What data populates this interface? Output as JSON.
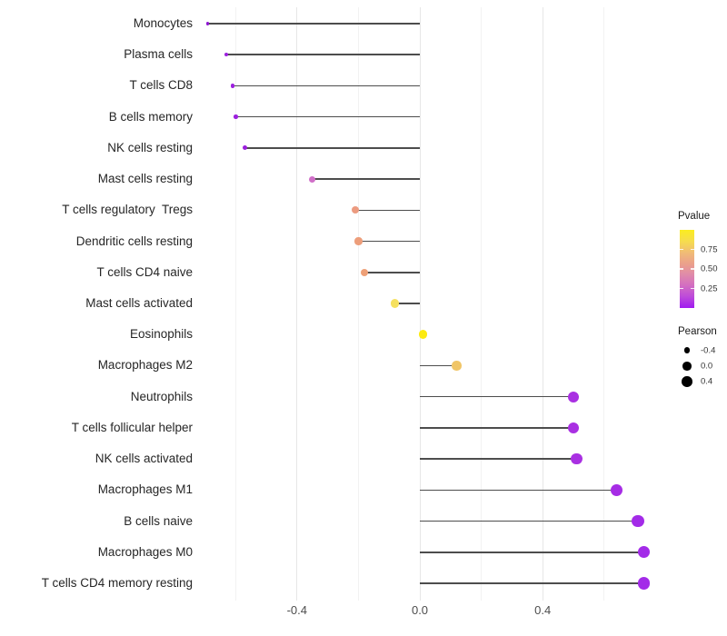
{
  "chart_data": {
    "type": "lollipop",
    "title": "",
    "xlabel": "",
    "ylabel": "",
    "xlim": [
      -0.72,
      0.83
    ],
    "grid": true,
    "x_ticks": [
      {
        "label": "-0.4",
        "value": -0.4
      },
      {
        "label": "0.0",
        "value": 0.0
      },
      {
        "label": "0.4",
        "value": 0.4
      }
    ],
    "x_minor_gridlines": [
      -0.6,
      -0.2,
      0.2,
      0.6
    ],
    "points": [
      {
        "label": "Monocytes",
        "pearson": -0.69,
        "color": "#8E17D1"
      },
      {
        "label": "Plasma cells",
        "pearson": -0.63,
        "color": "#9C20DE"
      },
      {
        "label": "T cells CD8",
        "pearson": -0.61,
        "color": "#9C20DE"
      },
      {
        "label": "B cells memory",
        "pearson": -0.6,
        "color": "#9C20DE"
      },
      {
        "label": "NK cells resting",
        "pearson": -0.57,
        "color": "#9B1FDD"
      },
      {
        "label": "Mast cells resting",
        "pearson": -0.35,
        "color": "#D06FC8"
      },
      {
        "label": "T cells regulatory  Tregs",
        "pearson": -0.21,
        "color": "#EC9B80"
      },
      {
        "label": "Dendritic cells resting",
        "pearson": -0.2,
        "color": "#ED9E7B"
      },
      {
        "label": "T cells CD4 naive",
        "pearson": -0.18,
        "color": "#EEA077"
      },
      {
        "label": "Mast cells activated",
        "pearson": -0.08,
        "color": "#F5E05E"
      },
      {
        "label": "Eosinophils",
        "pearson": 0.01,
        "color": "#FCEA11"
      },
      {
        "label": "Macrophages M2",
        "pearson": 0.12,
        "color": "#F0C567"
      },
      {
        "label": "Neutrophils",
        "pearson": 0.5,
        "color": "#A930E2"
      },
      {
        "label": "T cells follicular helper",
        "pearson": 0.5,
        "color": "#A930E2"
      },
      {
        "label": "NK cells activated",
        "pearson": 0.51,
        "color": "#A930E2"
      },
      {
        "label": "Macrophages M1",
        "pearson": 0.64,
        "color": "#A62CE5"
      },
      {
        "label": "B cells naive",
        "pearson": 0.71,
        "color": "#A32BE8"
      },
      {
        "label": "Macrophages M0",
        "pearson": 0.73,
        "color": "#A32BE8"
      },
      {
        "label": "T cells CD4 memory resting",
        "pearson": 0.73,
        "color": "#A32BE8"
      }
    ],
    "legend": {
      "color": {
        "title": "Pvalue",
        "range": [
          0.0,
          1.0
        ],
        "ticks": [
          {
            "label": "0.75",
            "value": 0.75
          },
          {
            "label": "0.50",
            "value": 0.5
          },
          {
            "label": "0.25",
            "value": 0.25
          }
        ],
        "gradient_stops": [
          {
            "at": 0.0,
            "color": "#A01BF0"
          },
          {
            "at": 0.15,
            "color": "#BE4CD9"
          },
          {
            "at": 0.3,
            "color": "#D470C0"
          },
          {
            "at": 0.45,
            "color": "#E18FA5"
          },
          {
            "at": 0.55,
            "color": "#EA9D8E"
          },
          {
            "at": 0.7,
            "color": "#F0BA78"
          },
          {
            "at": 0.85,
            "color": "#F6DC4F"
          },
          {
            "at": 1.0,
            "color": "#FBED1F"
          }
        ]
      },
      "size": {
        "title": "Pearson",
        "items": [
          {
            "label": "-0.4",
            "value": -0.4
          },
          {
            "label": "0.0",
            "value": 0.0
          },
          {
            "label": "0.4",
            "value": 0.4
          }
        ]
      }
    },
    "stem_color": "#4d4d4d"
  }
}
